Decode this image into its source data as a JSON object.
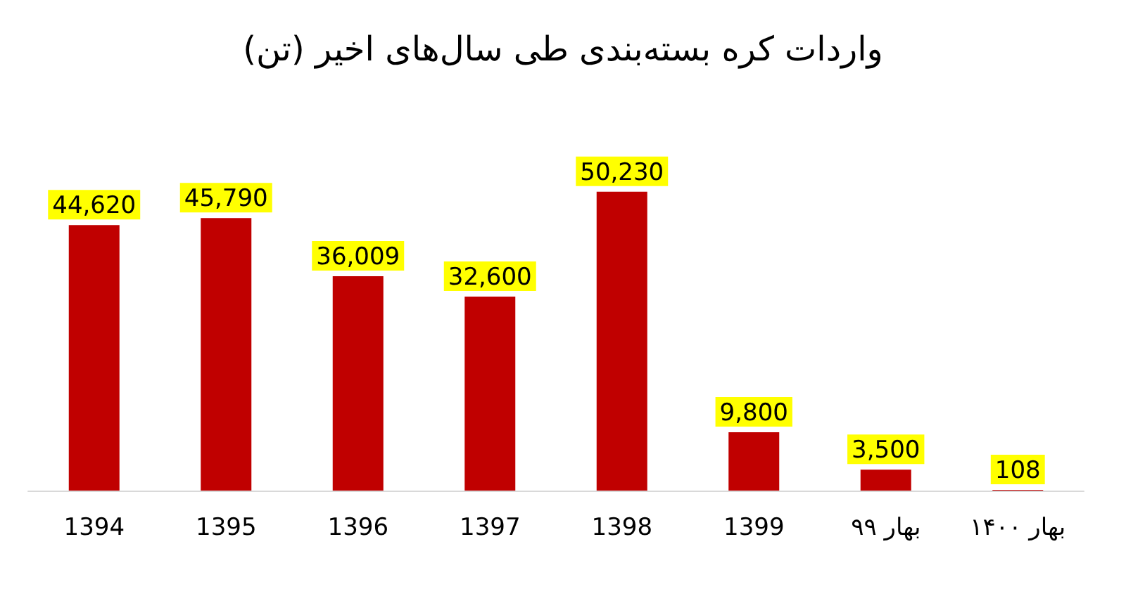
{
  "chart_data": {
    "type": "bar",
    "title": "واردات کره بسته‌بندی طی سال‌های اخیر (تن)",
    "categories": [
      "1394",
      "1395",
      "1396",
      "1397",
      "1398",
      "1399",
      "بهار ۹۹",
      "بهار ۱۴۰۰"
    ],
    "values": [
      44620,
      45790,
      36009,
      32600,
      50230,
      9800,
      3500,
      108
    ],
    "value_labels": [
      "44,620",
      "45,790",
      "36,009",
      "32,600",
      "50,230",
      "9,800",
      "3,500",
      "108"
    ],
    "color": "#c00000"
  }
}
